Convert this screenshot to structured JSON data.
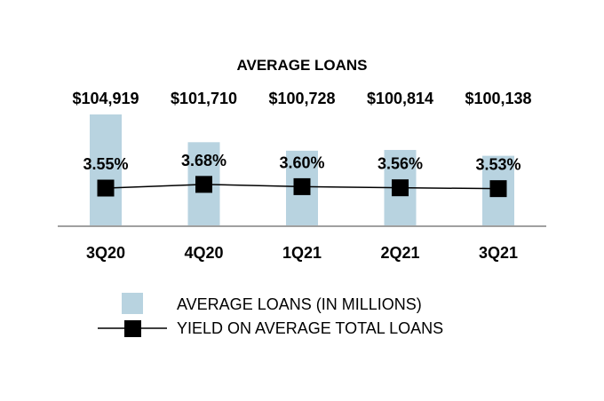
{
  "chart_data": {
    "type": "bar",
    "title": "AVERAGE LOANS",
    "categories": [
      "3Q20",
      "4Q20",
      "1Q21",
      "2Q21",
      "3Q21"
    ],
    "series": [
      {
        "name": "AVERAGE LOANS (IN MILLIONS)",
        "type": "bar",
        "values": [
          104919,
          101710,
          100728,
          100814,
          100138
        ],
        "labels": [
          "$104,919",
          "$101,710",
          "$100,728",
          "$100,814",
          "$100,138"
        ],
        "color": "#b8d3e0"
      },
      {
        "name": "YIELD ON AVERAGE TOTAL LOANS",
        "type": "line",
        "values": [
          3.55,
          3.68,
          3.6,
          3.56,
          3.53
        ],
        "labels": [
          "3.55%",
          "3.68%",
          "3.60%",
          "3.56%",
          "3.53%"
        ],
        "color": "#000000"
      }
    ],
    "legend_position": "bottom",
    "grid": false,
    "axis_color": "#a0a0a0"
  }
}
